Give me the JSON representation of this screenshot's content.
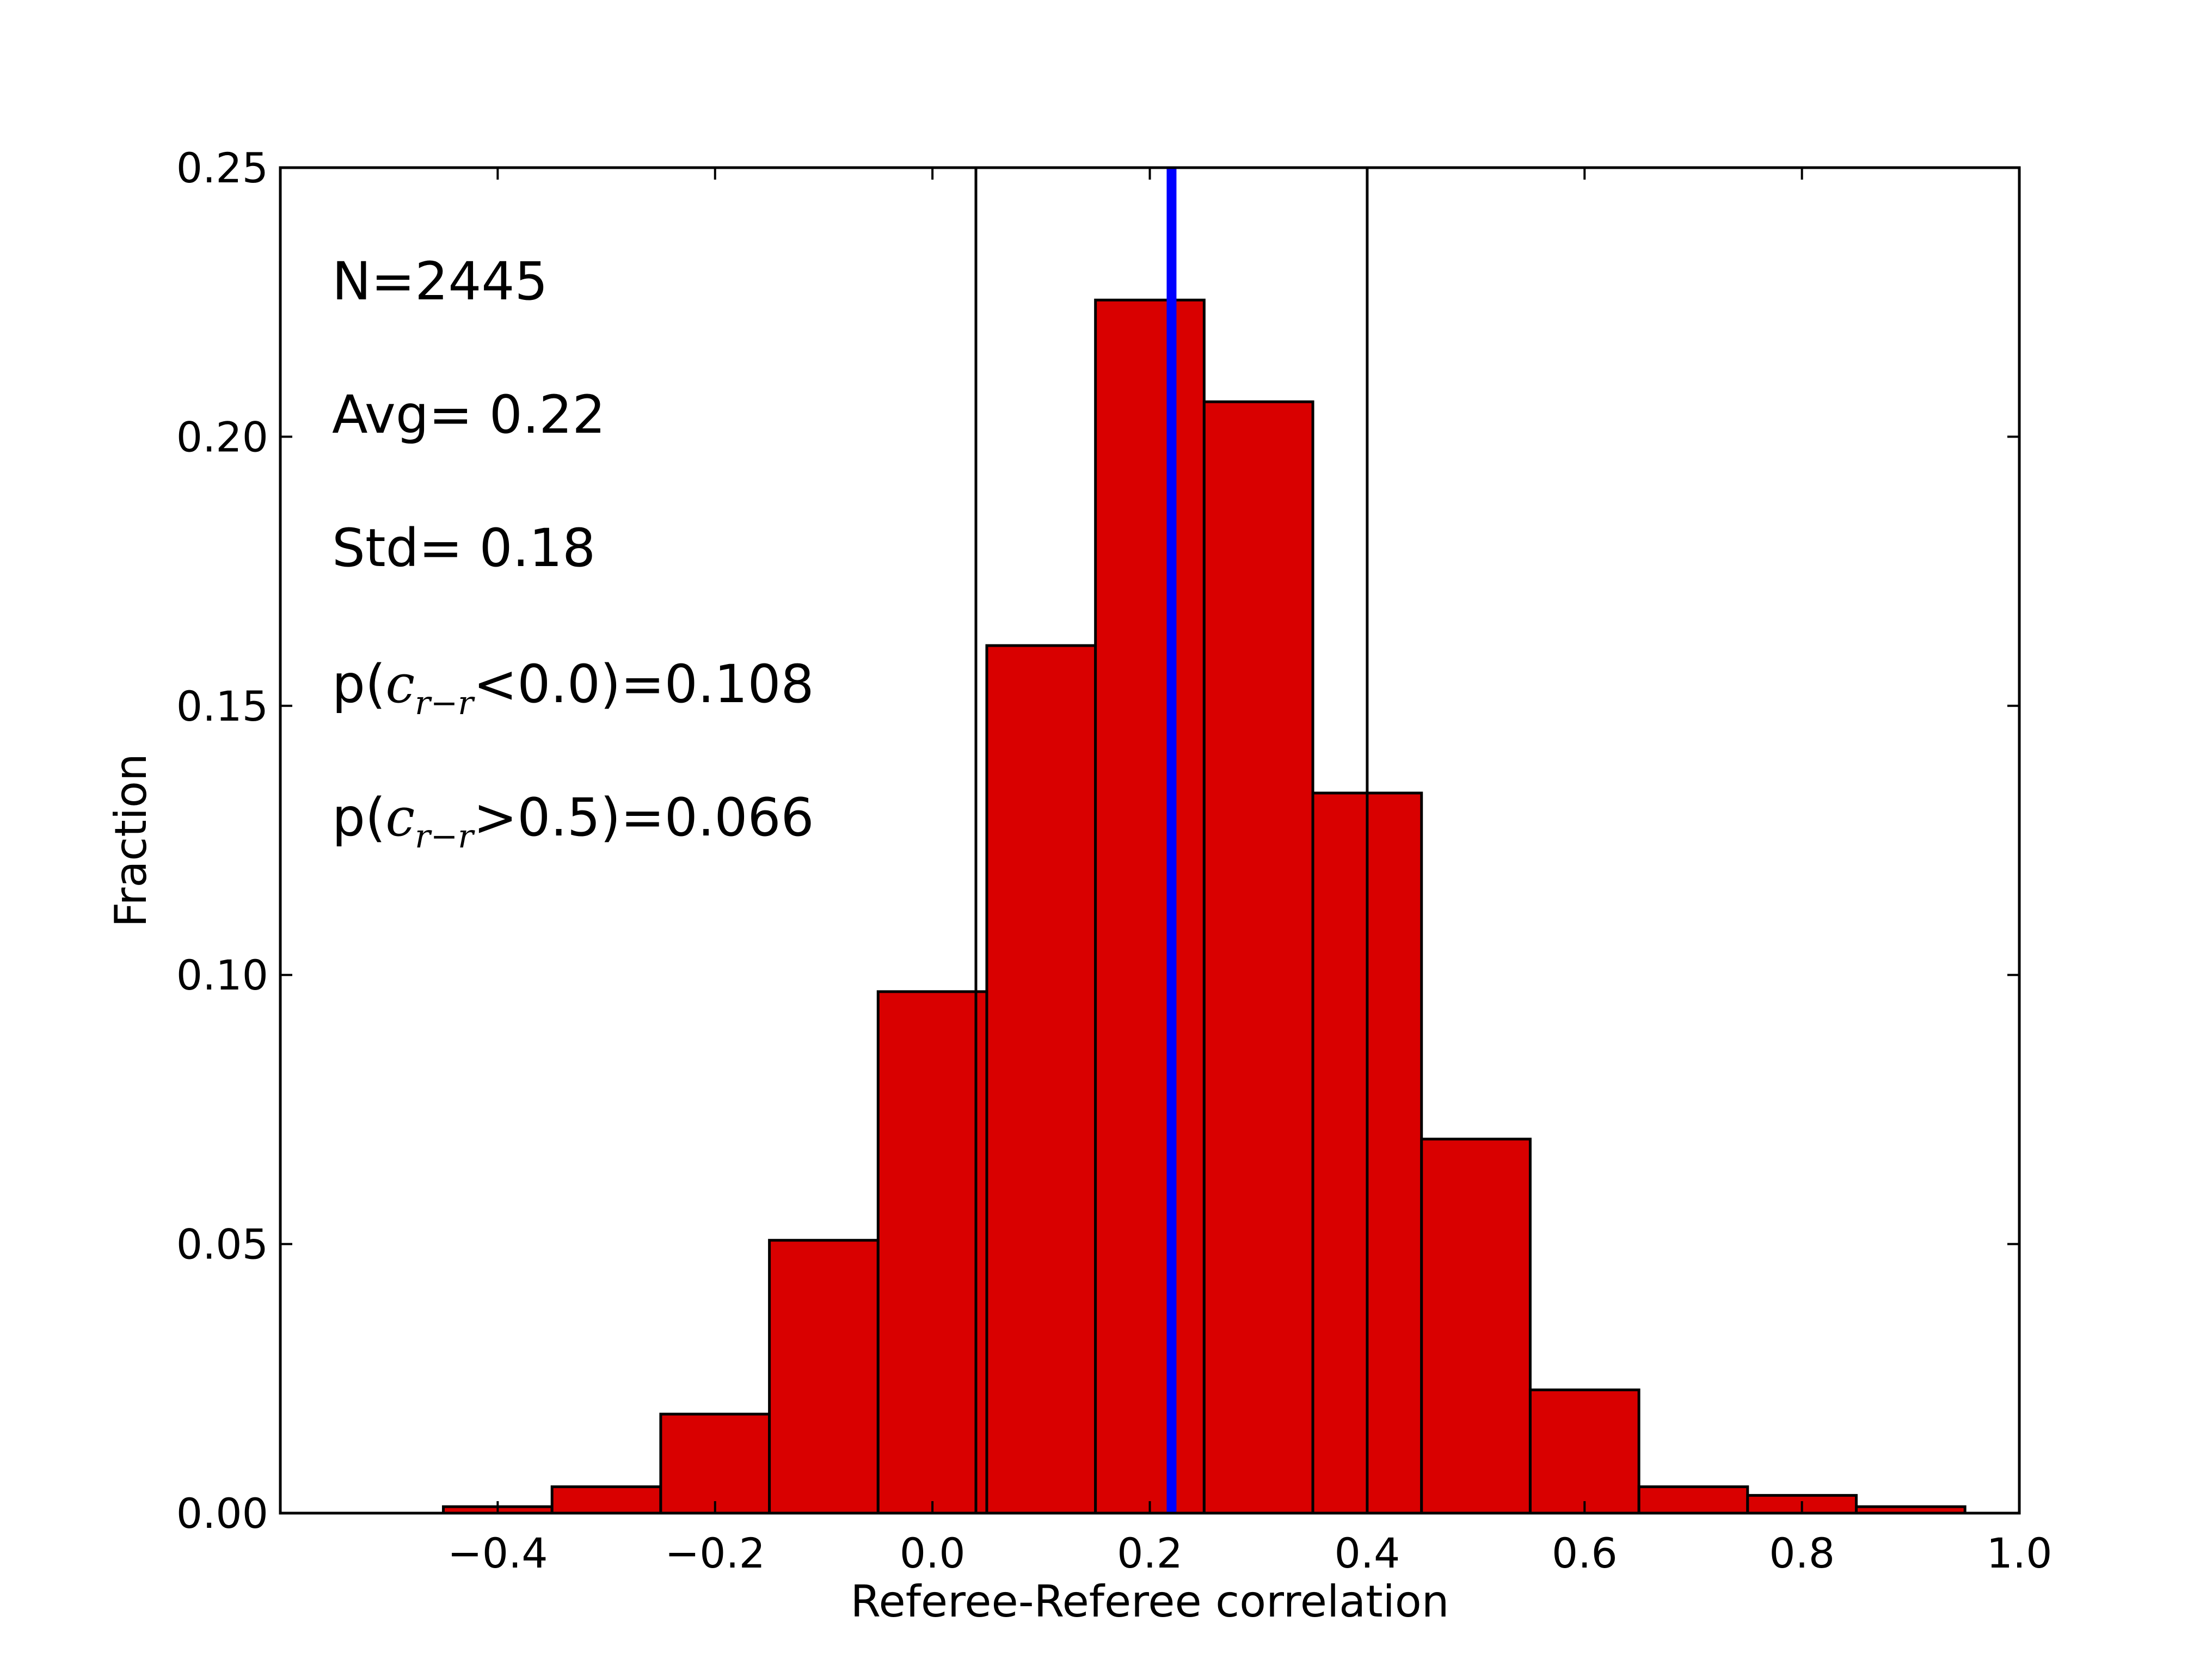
{
  "chart_data": {
    "type": "bar",
    "title": "",
    "xlabel": "Referee-Referee correlation",
    "ylabel": "Fraction",
    "xlim": [
      -0.6,
      1.0
    ],
    "ylim": [
      0.0,
      0.25
    ],
    "grid": false,
    "x_ticks": [
      -0.4,
      -0.2,
      0.0,
      0.2,
      0.4,
      0.6,
      0.8,
      1.0
    ],
    "x_tick_labels": [
      "−0.4",
      "−0.2",
      "0.0",
      "0.2",
      "0.4",
      "0.6",
      "0.8",
      "1.0"
    ],
    "y_ticks": [
      0.0,
      0.05,
      0.1,
      0.15,
      0.2,
      0.25
    ],
    "y_tick_labels": [
      "0.00",
      "0.05",
      "0.10",
      "0.15",
      "0.20",
      "0.25"
    ],
    "bin_edges": [
      -0.45,
      -0.35,
      -0.25,
      -0.15,
      -0.05,
      0.05,
      0.15,
      0.25,
      0.35,
      0.45,
      0.55,
      0.65,
      0.75,
      0.85,
      0.95
    ],
    "values": [
      0.0012,
      0.0049,
      0.0184,
      0.0507,
      0.0969,
      0.1612,
      0.2254,
      0.2065,
      0.1338,
      0.0695,
      0.0229,
      0.0049,
      0.0033,
      0.0012
    ],
    "bar_color": "#d90000",
    "edge_color": "#000000",
    "mean_line": {
      "x": 0.22,
      "color": "#0000ff"
    },
    "std_lines": [
      {
        "x": 0.04,
        "color": "#000000"
      },
      {
        "x": 0.4,
        "color": "#000000"
      }
    ],
    "annotations": {
      "n": "N=2445",
      "avg": "Avg= 0.22",
      "std": "Std= 0.18",
      "p_low": {
        "prefix": "p(",
        "var": "c",
        "sub": "r−r",
        "suffix": "<0.0)=0.108"
      },
      "p_high": {
        "prefix": "p(",
        "var": "c",
        "sub": "r−r",
        "suffix": ">0.5)=0.066"
      }
    }
  }
}
